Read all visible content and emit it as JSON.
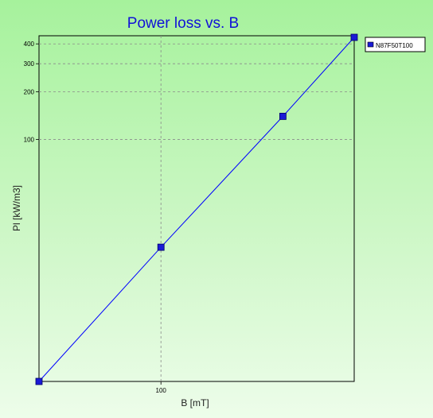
{
  "chart_data": {
    "type": "line",
    "title": "Power loss vs. B",
    "xlabel": "B [mT]",
    "ylabel": "Pl [kW/m3]",
    "x_scale": "log",
    "y_scale": "log",
    "xlim": [
      50,
      300
    ],
    "ylim": [
      3,
      450
    ],
    "x_ticks": [
      {
        "value": 100,
        "label": "100"
      }
    ],
    "y_ticks": [
      {
        "value": 100,
        "label": "100"
      },
      {
        "value": 200,
        "label": "200"
      },
      {
        "value": 300,
        "label": "300"
      },
      {
        "value": 400,
        "label": "400"
      }
    ],
    "grid": true,
    "legend_position": "top-right",
    "series": [
      {
        "name": "N87F50T100",
        "color": "#0000ff",
        "marker_color": "#1a1ad6",
        "x": [
          50,
          100,
          200,
          300
        ],
        "y": [
          3,
          21,
          140,
          440
        ]
      }
    ]
  }
}
